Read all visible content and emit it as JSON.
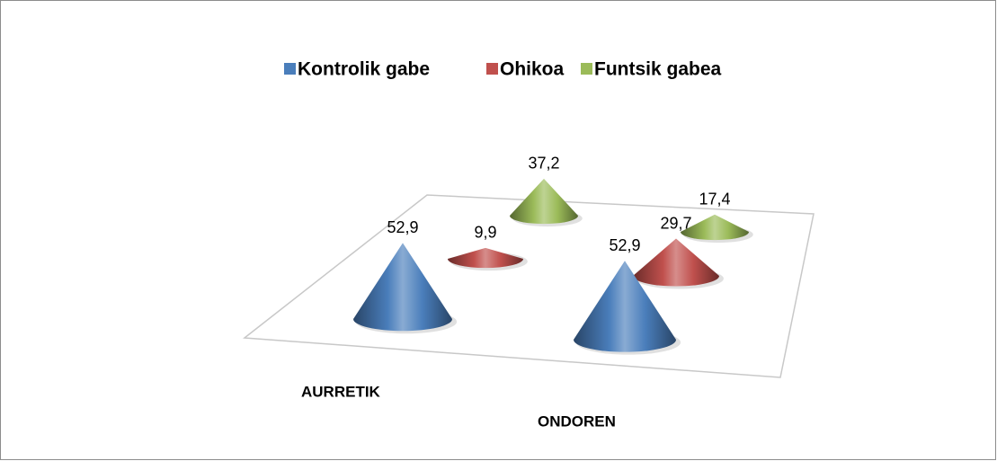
{
  "chart_data": {
    "type": "cone3d",
    "categories": [
      "AURRETIK",
      "ONDOREN"
    ],
    "series": [
      {
        "name": "Kontrolik gabe",
        "color": "#4a7ebb",
        "values": [
          52.9,
          52.9
        ],
        "value_labels": [
          "52,9",
          "52,9"
        ]
      },
      {
        "name": "Ohikoa",
        "color": "#c0504d",
        "values": [
          9.9,
          29.7
        ],
        "value_labels": [
          "9,9",
          "29,7"
        ]
      },
      {
        "name": "Funtsik gabea",
        "color": "#9bbb59",
        "values": [
          37.2,
          17.4
        ],
        "value_labels": [
          "37,2",
          "17,4"
        ]
      }
    ],
    "legend": "top"
  }
}
